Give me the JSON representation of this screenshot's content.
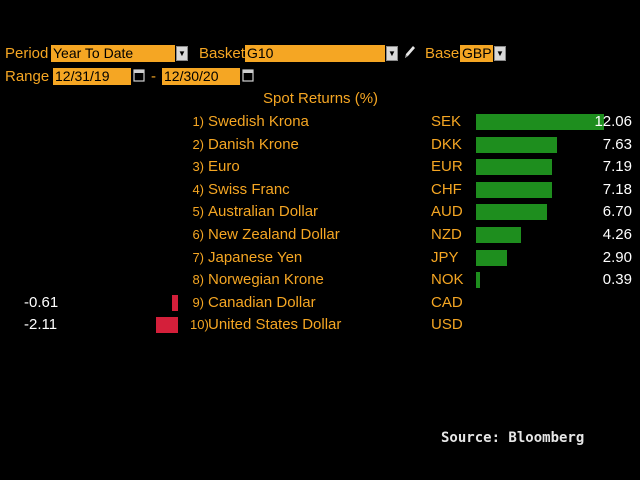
{
  "header": {
    "period_label": "Period",
    "period_value": "Year To Date",
    "basket_label": "Basket",
    "basket_value": "G10",
    "base_label": "Base",
    "base_value": "GBP",
    "range_label": "Range",
    "range_start": "12/31/19",
    "range_sep": "-",
    "range_end": "12/30/20"
  },
  "table": {
    "title": "Spot Returns (%)",
    "rows": [
      {
        "rank": "1)",
        "name": "Swedish Krona",
        "code": "SEK",
        "value": "12.06"
      },
      {
        "rank": "2)",
        "name": "Danish Krone",
        "code": "DKK",
        "value": "7.63"
      },
      {
        "rank": "3)",
        "name": "Euro",
        "code": "EUR",
        "value": "7.19"
      },
      {
        "rank": "4)",
        "name": "Swiss Franc",
        "code": "CHF",
        "value": "7.18"
      },
      {
        "rank": "5)",
        "name": "Australian Dollar",
        "code": "AUD",
        "value": "6.70"
      },
      {
        "rank": "6)",
        "name": "New Zealand Dollar",
        "code": "NZD",
        "value": "4.26"
      },
      {
        "rank": "7)",
        "name": "Japanese Yen",
        "code": "JPY",
        "value": "2.90"
      },
      {
        "rank": "8)",
        "name": "Norwegian Krone",
        "code": "NOK",
        "value": "0.39"
      },
      {
        "rank": "9)",
        "name": "Canadian Dollar",
        "code": "CAD",
        "value": "-0.61"
      },
      {
        "rank": "10)",
        "name": "United States Dollar",
        "code": "USD",
        "value": "-2.11"
      }
    ]
  },
  "chart_data": {
    "type": "bar",
    "categories": [
      "SEK",
      "DKK",
      "EUR",
      "CHF",
      "AUD",
      "NZD",
      "JPY",
      "NOK",
      "CAD",
      "USD"
    ],
    "values": [
      12.06,
      7.63,
      7.19,
      7.18,
      6.7,
      4.26,
      2.9,
      0.39,
      -0.61,
      -2.11
    ]
  },
  "colors": {
    "accent": "#f5a623",
    "positive": "#1e8e1e",
    "negative": "#d41f3a",
    "background": "#000000"
  },
  "icons": {
    "dropdown": "chevron-down-icon",
    "calendar": "calendar-icon",
    "edit": "pencil-icon"
  },
  "footer": {
    "source": "Source: Bloomberg"
  }
}
